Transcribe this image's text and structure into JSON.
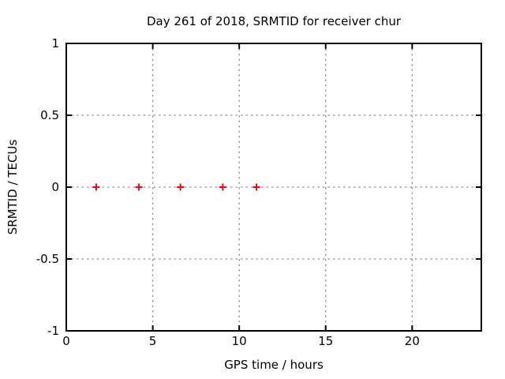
{
  "chart_data": {
    "type": "scatter",
    "title": "Day 261 of 2018, SRMTID for receiver chur",
    "xlabel": "GPS time / hours",
    "ylabel": "SRMTID / TECUs",
    "xlim": [
      0,
      24
    ],
    "ylim": [
      -1,
      1
    ],
    "grid": true,
    "legend": "none",
    "xticks": [
      {
        "value": 0,
        "label": "0"
      },
      {
        "value": 5,
        "label": "5"
      },
      {
        "value": 10,
        "label": "10"
      },
      {
        "value": 15,
        "label": "15"
      },
      {
        "value": 20,
        "label": "20"
      }
    ],
    "yticks": [
      {
        "value": -1,
        "label": "-1"
      },
      {
        "value": -0.5,
        "label": "-0.5"
      },
      {
        "value": 0,
        "label": "0"
      },
      {
        "value": 0.5,
        "label": "0.5"
      },
      {
        "value": 1,
        "label": "1"
      }
    ],
    "series": [
      {
        "name": "SRMTID",
        "marker": "plus",
        "color": "#ff0000",
        "points": [
          {
            "x": 1.73,
            "y": 0
          },
          {
            "x": 4.2,
            "y": 0
          },
          {
            "x": 6.6,
            "y": 0
          },
          {
            "x": 9.05,
            "y": 0
          },
          {
            "x": 11.0,
            "y": 0
          }
        ]
      }
    ],
    "colors": {
      "background": "#ffffff",
      "border": "#000000",
      "grid": "#909090",
      "text": "#000000"
    }
  }
}
